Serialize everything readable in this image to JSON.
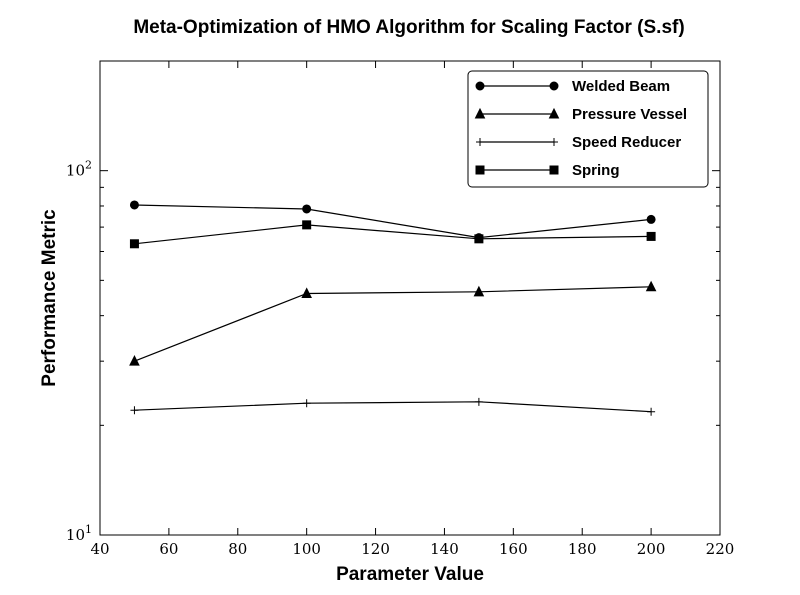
{
  "chart_data": {
    "type": "line",
    "title": "Meta-Optimization of HMO Algorithm for Scaling Factor (S.sf)",
    "xlabel": "Parameter Value",
    "ylabel": "Performance Metric",
    "xlim": [
      40,
      220
    ],
    "ylim": [
      10,
      200
    ],
    "y_scale": "log",
    "x_ticks": [
      "40",
      "60",
      "80",
      "100",
      "120",
      "140",
      "160",
      "180",
      "200",
      "220"
    ],
    "y_ticks": [
      {
        "base": "10",
        "exp": "1",
        "value": 10
      },
      {
        "base": "10",
        "exp": "2",
        "value": 100
      }
    ],
    "grid": false,
    "legend_position": "top-right",
    "x": [
      50,
      100,
      150,
      200
    ],
    "series": [
      {
        "name": "Welded Beam",
        "marker": "circle",
        "values": [
          80.5,
          78.5,
          65.5,
          73.5
        ]
      },
      {
        "name": "Pressure Vessel",
        "marker": "triangle",
        "values": [
          30.0,
          46.0,
          46.5,
          48.0
        ]
      },
      {
        "name": "Speed Reducer",
        "marker": "plus",
        "values": [
          22.0,
          23.0,
          23.2,
          21.8
        ]
      },
      {
        "name": "Spring",
        "marker": "square",
        "values": [
          63.0,
          71.0,
          65.0,
          66.0
        ]
      }
    ],
    "line_color": "#000000"
  }
}
